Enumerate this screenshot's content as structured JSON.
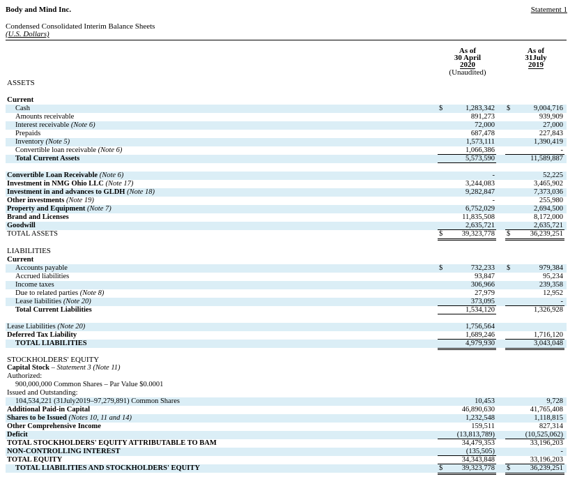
{
  "header": {
    "company": "Body and Mind Inc.",
    "statement_ref": "Statement 1",
    "title": "Condensed Consolidated Interim Balance Sheets",
    "currency": "(U.S. Dollars)"
  },
  "columns": [
    {
      "line1": "As of",
      "line2": "30 April",
      "line3": "2020",
      "note": "(Unaudited)"
    },
    {
      "line1": "As of",
      "line2": "31July",
      "line3": "2019",
      "note": ""
    }
  ],
  "sections": {
    "assets": "ASSETS",
    "current": "Current",
    "liabilities": "LIABILITIES",
    "liab_current": "Current",
    "equity": "STOCKHOLDERS' EQUITY"
  },
  "currency_symbol": "$",
  "rows": [
    {
      "label": "Cash",
      "v1": "1,283,342",
      "v2": "9,004,716"
    },
    {
      "label": "Amounts receivable",
      "v1": "891,273",
      "v2": "939,909"
    },
    {
      "label": "Interest receivable",
      "note": "(Note 6)",
      "v1": "72,000",
      "v2": "27,000"
    },
    {
      "label": "Prepaids",
      "v1": "687,478",
      "v2": "227,843"
    },
    {
      "label": "Inventory",
      "note": "(Note 5)",
      "v1": "1,573,111",
      "v2": "1,390,419"
    },
    {
      "label": "Convertible loan receivable",
      "note": "(Note 6)",
      "v1": "1,066,386",
      "v2": "-"
    },
    {
      "label": "Total Current Assets",
      "v1": "5,573,590",
      "v2": "11,589,887"
    },
    {
      "label": "Convertible Loan Receivable",
      "note": "(Note 6)",
      "v1": "-",
      "v2": "52,225"
    },
    {
      "label": "Investment in NMG Ohio LLC",
      "note": "(Note 17)",
      "v1": "3,244,083",
      "v2": "3,465,902"
    },
    {
      "label": "Investment in and advances to GLDH",
      "note": "(Note 18)",
      "v1": "9,282,847",
      "v2": "7,373,036"
    },
    {
      "label": "Other investments",
      "note": "(Note 19)",
      "v1": "-",
      "v2": "255,980"
    },
    {
      "label": "Property and Equipment",
      "note": "(Note 7)",
      "v1": "6,752,029",
      "v2": "2,694,500"
    },
    {
      "label": "Brand and Licenses",
      "v1": "11,835,508",
      "v2": "8,172,000"
    },
    {
      "label": "Goodwill",
      "v1": "2,635,721",
      "v2": "2,635,721"
    },
    {
      "label": "TOTAL ASSETS",
      "v1": "39,323,778",
      "v2": "36,239,251"
    },
    {
      "label": "Accounts payable",
      "v1": "732,233",
      "v2": "979,384"
    },
    {
      "label": "Accrued liabilities",
      "v1": "93,847",
      "v2": "95,234"
    },
    {
      "label": "Income taxes",
      "v1": "306,966",
      "v2": "239,358"
    },
    {
      "label": "Due to related parties",
      "note": "(Note 8)",
      "v1": "27,979",
      "v2": "12,952"
    },
    {
      "label": "Lease liabilities",
      "note": "(Note 20)",
      "v1": "373,095",
      "v2": "-"
    },
    {
      "label": "Total Current Liabilities",
      "v1": "1,534,120",
      "v2": "1,326,928"
    },
    {
      "label": "Lease Liabilities",
      "note": "(Note 20)",
      "v1": "1,756,564",
      "v2": ""
    },
    {
      "label": "Deferred Tax Liability",
      "v1": "1,689,246",
      "v2": "1,716,120"
    },
    {
      "label": "TOTAL LIABILITIES",
      "v1": "4,979,930",
      "v2": "3,043,048"
    },
    {
      "label": "Capital Stock",
      "note": "– Statement 3 (Note 11)",
      "v1": "",
      "v2": ""
    },
    {
      "label": "Authorized:",
      "v1": "",
      "v2": ""
    },
    {
      "label": "900,000,000 Common Shares – Par Value $0.0001",
      "v1": "",
      "v2": ""
    },
    {
      "label": "Issued and Outstanding:",
      "v1": "",
      "v2": ""
    },
    {
      "label": "104,534,221 (31July2019–97,279,891) Common Shares",
      "v1": "10,453",
      "v2": "9,728"
    },
    {
      "label": "Additional Paid-in Capital",
      "v1": "46,890,630",
      "v2": "41,765,408"
    },
    {
      "label": "Shares to be Issued",
      "note": "(Notes 10, 11 and 14)",
      "v1": "1,232,548",
      "v2": "1,118,815"
    },
    {
      "label": "Other Comprehensive Income",
      "v1": "159,511",
      "v2": "827,314"
    },
    {
      "label": "Deficit",
      "v1": "(13,813,789)",
      "v2": "(10,525,062)"
    },
    {
      "label": "TOTAL STOCKHOLDERS' EQUITY ATTRIBUTABLE TO BAM",
      "v1": "34,479,353",
      "v2": "33,196,203"
    },
    {
      "label": "NON-CONTROLLING INTEREST",
      "v1": "(135,505)",
      "v2": "-"
    },
    {
      "label": "TOTAL EQUITY",
      "v1": "34,343,848",
      "v2": "33,196,203"
    },
    {
      "label": "TOTAL LIABILITIES AND STOCKHOLDERS' EQUITY",
      "v1": "39,323,778",
      "v2": "36,239,251"
    }
  ]
}
